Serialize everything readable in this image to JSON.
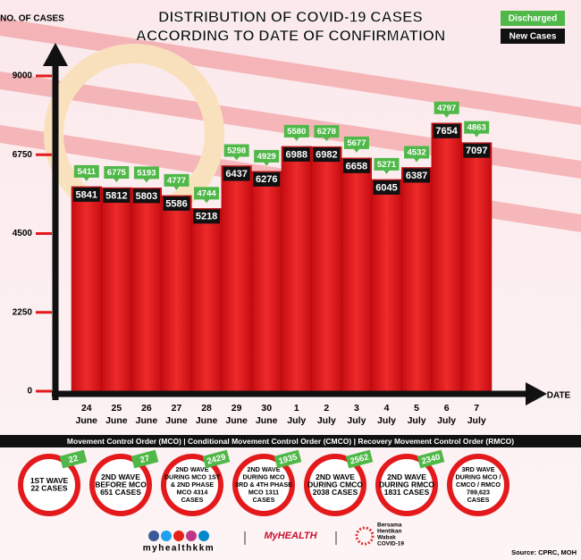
{
  "chart_data": {
    "type": "bar",
    "title": [
      "DISTRIBUTION OF COVID-19 CASES",
      "ACCORDING TO DATE OF CONFIRMATION"
    ],
    "y_label": "NO. OF CASES",
    "x_label": "DATE",
    "categories": [
      "24 June",
      "25 June",
      "26 June",
      "27 June",
      "28 June",
      "29 June",
      "30 June",
      "1 July",
      "2 July",
      "3 July",
      "4 July",
      "5 July",
      "6 July",
      "7 July"
    ],
    "series": [
      {
        "name": "New Cases",
        "color": "#e3191c",
        "values": [
          5841,
          5812,
          5803,
          5586,
          5218,
          6437,
          6276,
          6988,
          6982,
          6658,
          6045,
          6387,
          7654,
          7097
        ]
      },
      {
        "name": "Discharged",
        "color": "#4fb848",
        "values": [
          5411,
          6775,
          5193,
          4777,
          4744,
          5298,
          4929,
          5580,
          6278,
          5677,
          5271,
          4532,
          4797,
          4863
        ]
      }
    ],
    "ylim": [
      0,
      9000
    ],
    "yticks": [
      0,
      2250,
      4500,
      6750,
      9000
    ]
  },
  "banner": "Movement Control Order (MCO) | Conditional Movement Control Order (CMCO) | Recovery Movement Control Order (RMCO)",
  "waves": [
    {
      "lines": [
        "1ST WAVE",
        "22 CASES"
      ],
      "tag": "22"
    },
    {
      "lines": [
        "2ND WAVE",
        "BEFORE MCO",
        "651 CASES"
      ],
      "tag": "27"
    },
    {
      "lines": [
        "2ND WAVE",
        "DURING MCO 1ST",
        "& 2ND PHASE",
        "MCO 4314",
        "CASES"
      ],
      "tag": "2429"
    },
    {
      "lines": [
        "2ND WAVE",
        "DURING MCO",
        "3RD & 4TH PHASE",
        "MCO 1311",
        "CASES"
      ],
      "tag": "1935"
    },
    {
      "lines": [
        "2ND WAVE",
        "DURING CMCO",
        "2038 CASES"
      ],
      "tag": "2562"
    },
    {
      "lines": [
        "2ND WAVE",
        "DURING RMCO",
        "1831 CASES"
      ],
      "tag": "2340"
    },
    {
      "lines": [
        "3RD WAVE",
        "DURING MCO /",
        "CMCO / RMCO",
        "789,623",
        "CASES"
      ]
    }
  ],
  "footer": {
    "handle": "myhealthkkm",
    "brand": "MyHEALTH",
    "campaign": [
      "Bersama",
      "Hentikan",
      "Wabak",
      "COVID-19"
    ],
    "source": "Source: CPRC, MOH"
  }
}
